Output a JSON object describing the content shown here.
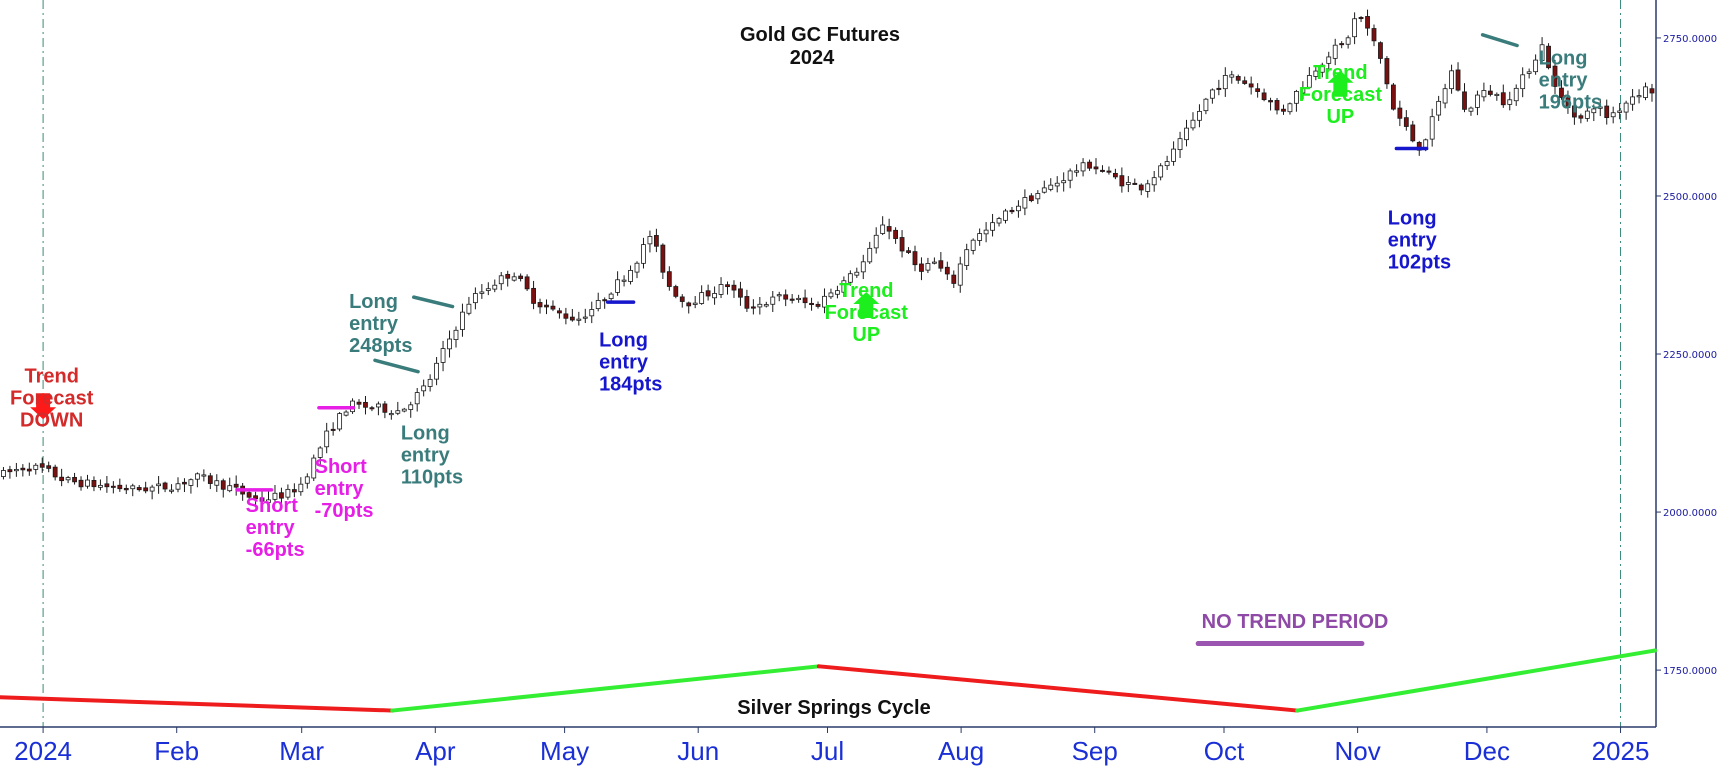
{
  "chart_data": {
    "type": "candlestick",
    "title": "Gold GC Futures",
    "subtitle": "2024",
    "ylim": [
      1660,
      2810
    ],
    "y_ticks": [
      "1750.0000",
      "2000.0000",
      "2250.0000",
      "2500.0000",
      "2750.0000"
    ],
    "y_tick_values": [
      1750,
      2000,
      2250,
      2500,
      2750
    ],
    "x_ticks": [
      "2024",
      "Feb",
      "Mar",
      "Apr",
      "May",
      "Jun",
      "Jul",
      "Aug",
      "Sep",
      "Oct",
      "Nov",
      "Dec",
      "2025"
    ],
    "x_tick_days": [
      1,
      32,
      61,
      92,
      122,
      153,
      183,
      214,
      245,
      275,
      306,
      336,
      367
    ],
    "x_range_days": [
      -9,
      375
    ],
    "vertical_lines_days": [
      1,
      367
    ],
    "price_path": [
      [
        -9,
        2058
      ],
      [
        -3,
        2072
      ],
      [
        1,
        2068
      ],
      [
        6,
        2050
      ],
      [
        14,
        2042
      ],
      [
        22,
        2036
      ],
      [
        30,
        2040
      ],
      [
        37,
        2055
      ],
      [
        44,
        2040
      ],
      [
        51,
        2018
      ],
      [
        58,
        2030
      ],
      [
        61,
        2045
      ],
      [
        67,
        2125
      ],
      [
        72,
        2170
      ],
      [
        78,
        2165
      ],
      [
        84,
        2160
      ],
      [
        90,
        2200
      ],
      [
        95,
        2270
      ],
      [
        100,
        2335
      ],
      [
        105,
        2360
      ],
      [
        110,
        2380
      ],
      [
        115,
        2335
      ],
      [
        120,
        2315
      ],
      [
        125,
        2305
      ],
      [
        130,
        2330
      ],
      [
        134,
        2360
      ],
      [
        138,
        2390
      ],
      [
        142,
        2440
      ],
      [
        146,
        2360
      ],
      [
        150,
        2330
      ],
      [
        155,
        2345
      ],
      [
        160,
        2360
      ],
      [
        164,
        2325
      ],
      [
        168,
        2330
      ],
      [
        172,
        2340
      ],
      [
        176,
        2335
      ],
      [
        180,
        2325
      ],
      [
        184,
        2350
      ],
      [
        188,
        2370
      ],
      [
        192,
        2400
      ],
      [
        196,
        2460
      ],
      [
        200,
        2420
      ],
      [
        204,
        2385
      ],
      [
        208,
        2395
      ],
      [
        212,
        2360
      ],
      [
        216,
        2430
      ],
      [
        220,
        2445
      ],
      [
        224,
        2470
      ],
      [
        228,
        2490
      ],
      [
        232,
        2505
      ],
      [
        236,
        2520
      ],
      [
        240,
        2540
      ],
      [
        244,
        2550
      ],
      [
        248,
        2535
      ],
      [
        252,
        2520
      ],
      [
        256,
        2515
      ],
      [
        260,
        2540
      ],
      [
        264,
        2575
      ],
      [
        268,
        2620
      ],
      [
        272,
        2665
      ],
      [
        276,
        2690
      ],
      [
        280,
        2680
      ],
      [
        284,
        2660
      ],
      [
        288,
        2630
      ],
      [
        292,
        2665
      ],
      [
        296,
        2700
      ],
      [
        300,
        2730
      ],
      [
        303,
        2740
      ],
      [
        306,
        2790
      ],
      [
        309,
        2755
      ],
      [
        312,
        2705
      ],
      [
        314,
        2640
      ],
      [
        317,
        2610
      ],
      [
        320,
        2575
      ],
      [
        322,
        2595
      ],
      [
        325,
        2650
      ],
      [
        328,
        2700
      ],
      [
        331,
        2630
      ],
      [
        334,
        2660
      ],
      [
        337,
        2665
      ],
      [
        340,
        2650
      ],
      [
        343,
        2670
      ],
      [
        346,
        2705
      ],
      [
        349,
        2740
      ],
      [
        352,
        2665
      ],
      [
        355,
        2640
      ],
      [
        358,
        2620
      ],
      [
        361,
        2645
      ],
      [
        364,
        2625
      ],
      [
        367,
        2640
      ],
      [
        370,
        2660
      ],
      [
        373,
        2670
      ],
      [
        375,
        2665
      ]
    ],
    "cycle": {
      "label": "Silver Springs Cycle",
      "segments": [
        {
          "trend": "down",
          "start": [
            -9,
            1707
          ],
          "end": [
            82,
            1686
          ]
        },
        {
          "trend": "up",
          "start": [
            82,
            1686
          ],
          "end": [
            181,
            1756
          ]
        },
        {
          "trend": "down",
          "start": [
            181,
            1756
          ],
          "end": [
            292,
            1686
          ]
        },
        {
          "trend": "up",
          "start": [
            292,
            1686
          ],
          "end": [
            375,
            1781
          ]
        }
      ]
    },
    "no_trend_period": {
      "label": "NO TREND PERIOD",
      "x": [
        269,
        307
      ],
      "y": 1792
    },
    "forecast_arrows": [
      {
        "direction": "down",
        "x": 1,
        "y": 2150,
        "color": "#ff1a1a",
        "lines": [
          "Trend",
          "Forecast",
          "DOWN"
        ],
        "text_x": 3,
        "text_y": 2205
      },
      {
        "direction": "up",
        "x": 192,
        "y": 2345,
        "color": "#1dee1d",
        "lines": [
          "Trend",
          "Forecast",
          "UP"
        ],
        "text_x": 192,
        "text_y": 2340
      },
      {
        "direction": "up",
        "x": 302,
        "y": 2695,
        "color": "#1dee1d",
        "lines": [
          "Trend",
          "Forecast",
          "UP"
        ],
        "text_x": 302,
        "text_y": 2685
      }
    ],
    "entries": [
      {
        "lines": [
          "Short",
          "entry",
          "-66pts"
        ],
        "color": "#e61ee6",
        "text_x": 48,
        "text_y": 2000,
        "marker": [
          [
            46,
            2035
          ],
          [
            54,
            2035
          ]
        ]
      },
      {
        "lines": [
          "Short",
          "entry",
          "-70pts"
        ],
        "color": "#e61ee6",
        "text_x": 64,
        "text_y": 2062,
        "marker": [
          [
            65,
            2165
          ],
          [
            73,
            2165
          ]
        ]
      },
      {
        "lines": [
          "Long",
          "entry",
          "110pts"
        ],
        "color": "#3a7c7c",
        "text_x": 84,
        "text_y": 2115,
        "marker": [
          [
            78,
            2240
          ],
          [
            88,
            2222
          ]
        ]
      },
      {
        "lines": [
          "Long",
          "entry",
          "248pts"
        ],
        "color": "#3a7c7c",
        "text_x": 72,
        "text_y": 2323,
        "marker": [
          [
            87,
            2340
          ],
          [
            96,
            2325
          ]
        ]
      },
      {
        "lines": [
          "Long",
          "entry",
          "184pts"
        ],
        "color": "#1616cc",
        "text_x": 130,
        "text_y": 2262,
        "marker": [
          [
            132,
            2332
          ],
          [
            138,
            2332
          ]
        ]
      },
      {
        "lines": [
          "Long",
          "entry",
          "102pts"
        ],
        "color": "#1616cc",
        "text_x": 313,
        "text_y": 2455,
        "marker": [
          [
            315,
            2575
          ],
          [
            322,
            2575
          ]
        ]
      },
      {
        "lines": [
          "Long",
          "entry",
          "196pts"
        ],
        "color": "#3a7c7c",
        "text_x": 348,
        "text_y": 2708,
        "marker": [
          [
            335,
            2755
          ],
          [
            343,
            2738
          ]
        ]
      }
    ]
  }
}
